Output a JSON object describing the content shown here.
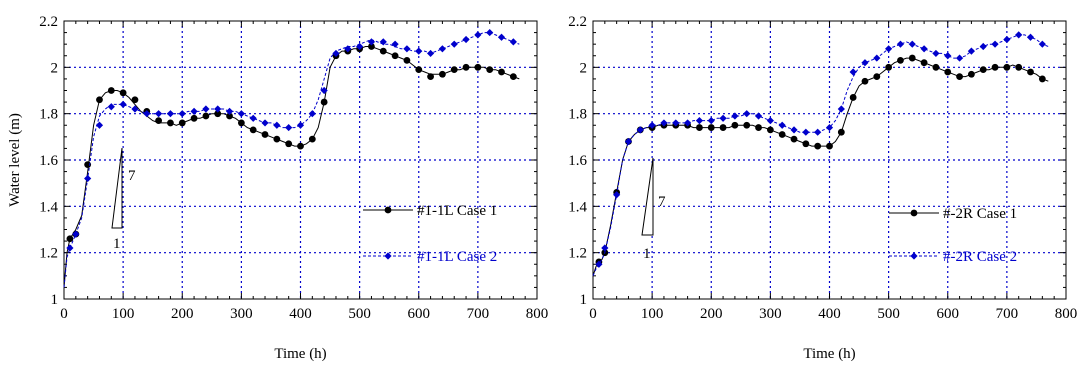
{
  "chart_data": [
    {
      "type": "line",
      "xlabel": "Time (h)",
      "ylabel": "Water level (m)",
      "xlim": [
        0,
        800
      ],
      "ylim": [
        1,
        2.2
      ],
      "xticks": [
        "0",
        "100",
        "200",
        "300",
        "400",
        "500",
        "600",
        "700",
        "800"
      ],
      "yticks": [
        "1",
        "1.2",
        "1.4",
        "1.6",
        "1.8",
        "2",
        "2.2"
      ],
      "grid": true,
      "legend_position": "center-right",
      "slope_annotation": {
        "rise_label": "7",
        "run_label": "1"
      },
      "series": [
        {
          "name": "#1-1L Case 1",
          "color": "#000000",
          "marker": "circle",
          "x": [
            0,
            5,
            10,
            15,
            20,
            30,
            40,
            50,
            60,
            70,
            80,
            90,
            100,
            110,
            120,
            130,
            140,
            150,
            160,
            170,
            180,
            190,
            200,
            210,
            220,
            230,
            240,
            250,
            260,
            270,
            280,
            290,
            300,
            310,
            320,
            330,
            340,
            350,
            360,
            370,
            380,
            390,
            400,
            410,
            420,
            430,
            440,
            450,
            460,
            470,
            480,
            490,
            500,
            510,
            520,
            530,
            540,
            550,
            560,
            570,
            580,
            590,
            600,
            610,
            620,
            630,
            640,
            650,
            660,
            670,
            680,
            690,
            700,
            710,
            720,
            730,
            740,
            750,
            760,
            770
          ],
          "y": [
            1.05,
            1.2,
            1.26,
            1.28,
            1.3,
            1.36,
            1.55,
            1.75,
            1.86,
            1.89,
            1.9,
            1.9,
            1.89,
            1.87,
            1.84,
            1.81,
            1.79,
            1.77,
            1.76,
            1.76,
            1.76,
            1.75,
            1.76,
            1.77,
            1.78,
            1.78,
            1.79,
            1.8,
            1.8,
            1.8,
            1.79,
            1.78,
            1.76,
            1.74,
            1.73,
            1.72,
            1.71,
            1.7,
            1.69,
            1.68,
            1.67,
            1.66,
            1.66,
            1.67,
            1.69,
            1.74,
            1.85,
            2.0,
            2.05,
            2.07,
            2.07,
            2.08,
            2.08,
            2.09,
            2.09,
            2.08,
            2.07,
            2.06,
            2.05,
            2.04,
            2.03,
            2.01,
            1.99,
            1.98,
            1.97,
            1.97,
            1.97,
            1.98,
            1.99,
            1.99,
            2.0,
            2.0,
            2.0,
            2.0,
            1.99,
            1.99,
            1.98,
            1.97,
            1.96,
            1.95
          ],
          "marker_x": [
            10,
            20,
            40,
            60,
            80,
            100,
            120,
            140,
            160,
            180,
            200,
            220,
            240,
            260,
            280,
            300,
            320,
            340,
            360,
            380,
            400,
            420,
            440,
            460,
            480,
            500,
            520,
            540,
            560,
            580,
            600,
            620,
            640,
            660,
            680,
            700,
            720,
            740,
            760
          ],
          "marker_y": [
            1.26,
            1.28,
            1.58,
            1.86,
            1.9,
            1.89,
            1.86,
            1.81,
            1.77,
            1.76,
            1.76,
            1.78,
            1.79,
            1.8,
            1.79,
            1.76,
            1.73,
            1.71,
            1.69,
            1.67,
            1.66,
            1.69,
            1.85,
            2.05,
            2.07,
            2.08,
            2.09,
            2.07,
            2.05,
            2.03,
            1.99,
            1.96,
            1.97,
            1.99,
            2.0,
            2.0,
            1.99,
            1.98,
            1.96
          ]
        },
        {
          "name": "#1-1L Case 2",
          "color": "#0000cc",
          "marker": "diamond",
          "x": [
            0,
            5,
            10,
            15,
            20,
            30,
            40,
            50,
            60,
            70,
            80,
            90,
            100,
            110,
            120,
            130,
            140,
            150,
            160,
            170,
            180,
            190,
            200,
            210,
            220,
            230,
            240,
            250,
            260,
            270,
            280,
            290,
            300,
            310,
            320,
            330,
            340,
            350,
            360,
            370,
            380,
            390,
            400,
            410,
            420,
            430,
            440,
            450,
            460,
            470,
            480,
            490,
            500,
            510,
            520,
            530,
            540,
            550,
            560,
            570,
            580,
            590,
            600,
            610,
            620,
            630,
            640,
            650,
            660,
            670,
            680,
            690,
            700,
            710,
            720,
            730,
            740,
            750,
            760,
            770
          ],
          "y": [
            1.05,
            1.18,
            1.22,
            1.25,
            1.28,
            1.35,
            1.52,
            1.7,
            1.79,
            1.82,
            1.84,
            1.84,
            1.84,
            1.83,
            1.82,
            1.81,
            1.8,
            1.8,
            1.8,
            1.8,
            1.8,
            1.8,
            1.8,
            1.81,
            1.81,
            1.81,
            1.82,
            1.82,
            1.82,
            1.82,
            1.81,
            1.81,
            1.8,
            1.79,
            1.78,
            1.77,
            1.76,
            1.76,
            1.75,
            1.74,
            1.74,
            1.74,
            1.75,
            1.77,
            1.8,
            1.86,
            1.95,
            2.04,
            2.07,
            2.08,
            2.09,
            2.09,
            2.1,
            2.11,
            2.12,
            2.11,
            2.1,
            2.1,
            2.09,
            2.08,
            2.08,
            2.07,
            2.07,
            2.07,
            2.06,
            2.07,
            2.08,
            2.09,
            2.1,
            2.11,
            2.12,
            2.13,
            2.14,
            2.15,
            2.15,
            2.14,
            2.13,
            2.12,
            2.11,
            2.1
          ],
          "marker_x": [
            10,
            20,
            40,
            60,
            80,
            100,
            120,
            140,
            160,
            180,
            200,
            220,
            240,
            260,
            280,
            300,
            320,
            340,
            360,
            380,
            400,
            420,
            440,
            460,
            480,
            500,
            520,
            540,
            560,
            580,
            600,
            620,
            640,
            660,
            680,
            700,
            720,
            740,
            760
          ],
          "marker_y": [
            1.22,
            1.28,
            1.52,
            1.75,
            1.83,
            1.84,
            1.82,
            1.8,
            1.8,
            1.8,
            1.8,
            1.81,
            1.82,
            1.82,
            1.81,
            1.8,
            1.78,
            1.76,
            1.75,
            1.74,
            1.75,
            1.8,
            1.9,
            2.06,
            2.08,
            2.09,
            2.11,
            2.11,
            2.1,
            2.08,
            2.07,
            2.06,
            2.08,
            2.1,
            2.12,
            2.14,
            2.15,
            2.13,
            2.11
          ]
        }
      ]
    },
    {
      "type": "line",
      "xlabel": "Time (h)",
      "ylabel": "",
      "xlim": [
        0,
        800
      ],
      "ylim": [
        1,
        2.2
      ],
      "xticks": [
        "0",
        "100",
        "200",
        "300",
        "400",
        "500",
        "600",
        "700",
        "800"
      ],
      "yticks": [
        "1",
        "1.2",
        "1.4",
        "1.6",
        "1.8",
        "2",
        "2.2"
      ],
      "grid": true,
      "legend_position": "center-right",
      "slope_annotation": {
        "rise_label": "7",
        "run_label": "1"
      },
      "series": [
        {
          "name": "#-2R Case 1",
          "color": "#000000",
          "marker": "circle",
          "x": [
            0,
            5,
            10,
            15,
            20,
            30,
            40,
            50,
            60,
            70,
            80,
            90,
            100,
            110,
            120,
            130,
            140,
            150,
            160,
            170,
            180,
            190,
            200,
            210,
            220,
            230,
            240,
            250,
            260,
            270,
            280,
            290,
            300,
            310,
            320,
            330,
            340,
            350,
            360,
            370,
            380,
            390,
            400,
            410,
            420,
            430,
            440,
            450,
            460,
            470,
            480,
            490,
            500,
            510,
            520,
            530,
            540,
            550,
            560,
            570,
            580,
            590,
            600,
            610,
            620,
            630,
            640,
            650,
            660,
            670,
            680,
            690,
            700,
            710,
            720,
            730,
            740,
            750,
            760,
            770
          ],
          "y": [
            1.1,
            1.14,
            1.16,
            1.17,
            1.2,
            1.32,
            1.46,
            1.6,
            1.68,
            1.71,
            1.73,
            1.74,
            1.74,
            1.75,
            1.75,
            1.75,
            1.75,
            1.75,
            1.75,
            1.74,
            1.74,
            1.74,
            1.74,
            1.74,
            1.74,
            1.74,
            1.75,
            1.75,
            1.75,
            1.75,
            1.74,
            1.74,
            1.73,
            1.72,
            1.71,
            1.7,
            1.69,
            1.68,
            1.67,
            1.66,
            1.66,
            1.66,
            1.66,
            1.68,
            1.72,
            1.8,
            1.87,
            1.92,
            1.94,
            1.95,
            1.96,
            1.98,
            2.0,
            2.02,
            2.03,
            2.04,
            2.04,
            2.03,
            2.02,
            2.01,
            2.0,
            1.99,
            1.98,
            1.97,
            1.96,
            1.96,
            1.97,
            1.98,
            1.99,
            1.99,
            2.0,
            2.0,
            2.0,
            2.01,
            2.0,
            1.99,
            1.98,
            1.97,
            1.95,
            1.94
          ],
          "marker_x": [
            10,
            20,
            40,
            60,
            80,
            100,
            120,
            140,
            160,
            180,
            200,
            220,
            240,
            260,
            280,
            300,
            320,
            340,
            360,
            380,
            400,
            420,
            440,
            460,
            480,
            500,
            520,
            540,
            560,
            580,
            600,
            620,
            640,
            660,
            680,
            700,
            720,
            740,
            760
          ],
          "marker_y": [
            1.16,
            1.2,
            1.46,
            1.68,
            1.73,
            1.74,
            1.75,
            1.75,
            1.75,
            1.74,
            1.74,
            1.74,
            1.75,
            1.75,
            1.74,
            1.73,
            1.71,
            1.69,
            1.67,
            1.66,
            1.66,
            1.72,
            1.87,
            1.94,
            1.96,
            2.0,
            2.03,
            2.04,
            2.02,
            2.0,
            1.98,
            1.96,
            1.97,
            1.99,
            2.0,
            2.0,
            2.0,
            1.98,
            1.95
          ]
        },
        {
          "name": "#-2R Case 2",
          "color": "#0000cc",
          "marker": "diamond",
          "x": [
            0,
            5,
            10,
            15,
            20,
            30,
            40,
            50,
            60,
            70,
            80,
            90,
            100,
            110,
            120,
            130,
            140,
            150,
            160,
            170,
            180,
            190,
            200,
            210,
            220,
            230,
            240,
            250,
            260,
            270,
            280,
            290,
            300,
            310,
            320,
            330,
            340,
            350,
            360,
            370,
            380,
            390,
            400,
            410,
            420,
            430,
            440,
            450,
            460,
            470,
            480,
            490,
            500,
            510,
            520,
            530,
            540,
            550,
            560,
            570,
            580,
            590,
            600,
            610,
            620,
            630,
            640,
            650,
            660,
            670,
            680,
            690,
            700,
            710,
            720,
            730,
            740,
            750,
            760,
            770
          ],
          "y": [
            1.1,
            1.13,
            1.15,
            1.17,
            1.2,
            1.31,
            1.45,
            1.6,
            1.68,
            1.71,
            1.73,
            1.74,
            1.75,
            1.75,
            1.76,
            1.76,
            1.76,
            1.76,
            1.76,
            1.77,
            1.77,
            1.77,
            1.77,
            1.78,
            1.78,
            1.78,
            1.79,
            1.79,
            1.8,
            1.8,
            1.79,
            1.78,
            1.77,
            1.76,
            1.75,
            1.74,
            1.73,
            1.72,
            1.72,
            1.72,
            1.72,
            1.73,
            1.74,
            1.77,
            1.82,
            1.9,
            1.96,
            2.0,
            2.02,
            2.03,
            2.04,
            2.06,
            2.08,
            2.09,
            2.1,
            2.11,
            2.1,
            2.09,
            2.08,
            2.07,
            2.06,
            2.06,
            2.05,
            2.04,
            2.04,
            2.05,
            2.07,
            2.08,
            2.09,
            2.1,
            2.1,
            2.11,
            2.12,
            2.13,
            2.14,
            2.14,
            2.13,
            2.12,
            2.1,
            2.09
          ],
          "marker_x": [
            10,
            20,
            40,
            60,
            80,
            100,
            120,
            140,
            160,
            180,
            200,
            220,
            240,
            260,
            280,
            300,
            320,
            340,
            360,
            380,
            400,
            420,
            440,
            460,
            480,
            500,
            520,
            540,
            560,
            580,
            600,
            620,
            640,
            660,
            680,
            700,
            720,
            740,
            760
          ],
          "marker_y": [
            1.15,
            1.22,
            1.45,
            1.68,
            1.73,
            1.75,
            1.76,
            1.76,
            1.76,
            1.77,
            1.77,
            1.78,
            1.79,
            1.8,
            1.79,
            1.77,
            1.75,
            1.73,
            1.72,
            1.72,
            1.74,
            1.82,
            1.98,
            2.02,
            2.04,
            2.08,
            2.1,
            2.1,
            2.08,
            2.06,
            2.05,
            2.04,
            2.07,
            2.09,
            2.1,
            2.12,
            2.14,
            2.13,
            2.1
          ]
        }
      ]
    }
  ]
}
